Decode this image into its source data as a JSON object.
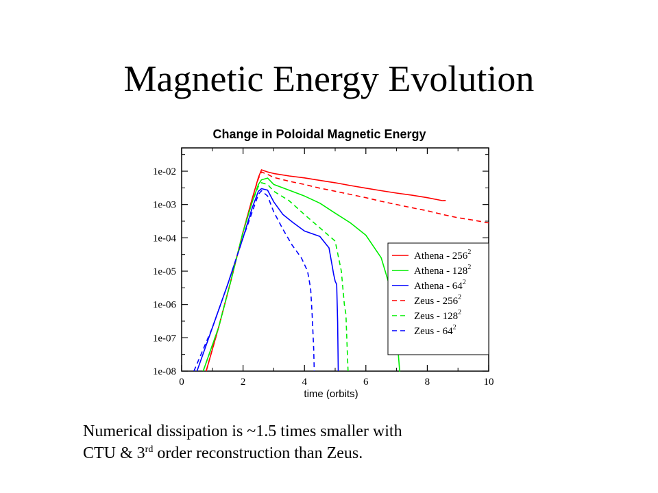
{
  "slide": {
    "title": "Magnetic Energy Evolution",
    "caption_line1_pre": "Numerical dissipation is ",
    "caption_tilde": "~",
    "caption_line1_post": "1.5 times smaller with",
    "caption_line2_pre": "CTU & 3",
    "caption_line2_sup": "rd",
    "caption_line2_post": " order reconstruction than Zeus."
  },
  "chart_data": {
    "type": "line",
    "title": "Change in Poloidal Magnetic Energy",
    "xlabel": "time (orbits)",
    "ylabel": "",
    "xlim": [
      0,
      10
    ],
    "ylim": [
      1e-08,
      0.05
    ],
    "yscale": "log",
    "xticks": [
      0,
      2,
      4,
      6,
      8,
      10
    ],
    "yticks": [
      1e-08,
      1e-07,
      1e-06,
      1e-05,
      0.0001,
      0.001,
      0.01
    ],
    "ytick_labels": [
      "1e-08",
      "1e-07",
      "1e-06",
      "1e-05",
      "1e-04",
      "1e-03",
      "1e-02"
    ],
    "grid": false,
    "legend_position": "lower-right",
    "series": [
      {
        "name": "Athena - 256",
        "superscript": "2",
        "color": "#ff0000",
        "dash": "solid",
        "x": [
          0.8,
          1.2,
          1.6,
          2.0,
          2.3,
          2.5,
          2.6,
          2.8,
          3.0,
          3.5,
          4.0,
          4.5,
          5.0,
          5.5,
          6.0,
          6.5,
          7.0,
          7.5,
          8.0,
          8.5,
          8.6
        ],
        "y": [
          1e-08,
          2e-07,
          5e-06,
          0.00015,
          0.0015,
          0.0065,
          0.011,
          0.0095,
          0.0085,
          0.0072,
          0.0063,
          0.0053,
          0.0045,
          0.0037,
          0.0031,
          0.0026,
          0.0022,
          0.0019,
          0.0016,
          0.0013,
          0.00132
        ]
      },
      {
        "name": "Athena - 128",
        "superscript": "2",
        "color": "#00ee00",
        "dash": "solid",
        "x": [
          0.7,
          1.2,
          1.6,
          2.0,
          2.3,
          2.5,
          2.6,
          2.8,
          3.0,
          3.5,
          4.0,
          4.5,
          5.0,
          5.5,
          6.0,
          6.5,
          6.8,
          7.0,
          7.05,
          7.1,
          7.12
        ],
        "y": [
          1e-08,
          2e-07,
          5e-06,
          0.00015,
          0.0012,
          0.004,
          0.0055,
          0.0062,
          0.004,
          0.0027,
          0.0018,
          0.0011,
          0.00055,
          0.00028,
          0.00012,
          2.5e-05,
          3e-06,
          2e-07,
          4e-08,
          1e-08,
          1e-08
        ]
      },
      {
        "name": "Athena - 64",
        "superscript": "2",
        "color": "#0000ff",
        "dash": "solid",
        "x": [
          0.5,
          1.0,
          1.5,
          2.0,
          2.3,
          2.5,
          2.6,
          2.8,
          3.0,
          3.3,
          3.6,
          4.0,
          4.5,
          4.8,
          4.9,
          4.95,
          5.0,
          5.05,
          5.08,
          5.1
        ],
        "y": [
          1e-08,
          2e-07,
          4e-06,
          0.0001,
          0.0008,
          0.0025,
          0.003,
          0.0027,
          0.0012,
          0.0005,
          0.0003,
          0.00016,
          0.00011,
          5e-05,
          1.5e-05,
          8e-06,
          5e-06,
          4e-06,
          3e-07,
          1e-08
        ]
      },
      {
        "name": "Zeus - 256",
        "superscript": "2",
        "color": "#ff0000",
        "dash": "dashed",
        "x": [
          0.8,
          1.2,
          1.6,
          2.0,
          2.3,
          2.5,
          2.6,
          2.8,
          3.0,
          3.5,
          4.0,
          4.5,
          5.0,
          5.5,
          6.0,
          6.5,
          7.0,
          7.5,
          8.0,
          8.5,
          9.0,
          9.5,
          10.0
        ],
        "y": [
          1e-08,
          2e-07,
          5e-06,
          0.00015,
          0.0015,
          0.006,
          0.0095,
          0.008,
          0.0065,
          0.005,
          0.004,
          0.0031,
          0.0025,
          0.002,
          0.0016,
          0.00125,
          0.001,
          0.0008,
          0.00065,
          0.0005,
          0.0004,
          0.00034,
          0.00028
        ]
      },
      {
        "name": "Zeus - 128",
        "superscript": "2",
        "color": "#00ee00",
        "dash": "dashed",
        "x": [
          0.7,
          1.2,
          1.6,
          2.0,
          2.3,
          2.5,
          2.6,
          2.8,
          3.0,
          3.5,
          4.0,
          4.5,
          5.0,
          5.2,
          5.3,
          5.35,
          5.4,
          5.42
        ],
        "y": [
          1e-08,
          2e-07,
          5e-06,
          0.00015,
          0.0012,
          0.0035,
          0.0045,
          0.004,
          0.0025,
          0.0013,
          0.0005,
          0.0002,
          8e-05,
          1e-05,
          1e-06,
          5e-07,
          3e-08,
          1e-08
        ]
      },
      {
        "name": "Zeus - 64",
        "superscript": "2",
        "color": "#0000ff",
        "dash": "dashed",
        "x": [
          0.4,
          1.0,
          1.5,
          2.0,
          2.3,
          2.5,
          2.6,
          2.8,
          3.0,
          3.3,
          3.6,
          3.9,
          4.1,
          4.2,
          4.25,
          4.3,
          4.32
        ],
        "y": [
          1e-08,
          2e-07,
          4e-06,
          0.0001,
          0.0006,
          0.002,
          0.0026,
          0.0018,
          0.0006,
          0.00018,
          6e-05,
          2.5e-05,
          1e-05,
          3e-06,
          5e-07,
          5e-08,
          1e-08
        ]
      }
    ]
  }
}
